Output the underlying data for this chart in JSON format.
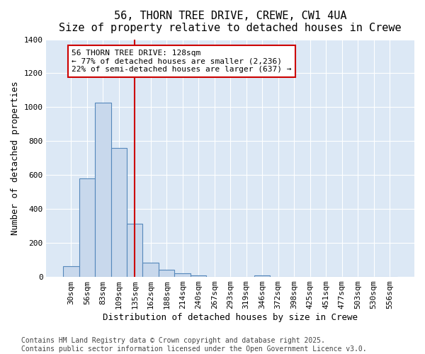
{
  "title": "56, THORN TREE DRIVE, CREWE, CW1 4UA",
  "subtitle": "Size of property relative to detached houses in Crewe",
  "xlabel": "Distribution of detached houses by size in Crewe",
  "ylabel": "Number of detached properties",
  "categories": [
    "30sqm",
    "56sqm",
    "83sqm",
    "109sqm",
    "135sqm",
    "162sqm",
    "188sqm",
    "214sqm",
    "240sqm",
    "267sqm",
    "293sqm",
    "319sqm",
    "346sqm",
    "372sqm",
    "398sqm",
    "425sqm",
    "451sqm",
    "477sqm",
    "503sqm",
    "530sqm",
    "556sqm"
  ],
  "values": [
    65,
    580,
    1025,
    760,
    315,
    85,
    40,
    20,
    10,
    0,
    0,
    0,
    10,
    0,
    0,
    0,
    0,
    0,
    0,
    0,
    0
  ],
  "bar_color": "#c8d8ec",
  "bar_edge_color": "#5588bb",
  "ylim": [
    0,
    1400
  ],
  "yticks": [
    0,
    200,
    400,
    600,
    800,
    1000,
    1200,
    1400
  ],
  "vline_pos": 4.0,
  "vline_color": "#cc0000",
  "annotation_text": "56 THORN TREE DRIVE: 128sqm\n← 77% of detached houses are smaller (2,236)\n22% of semi-detached houses are larger (637) →",
  "annotation_box_color": "#ffffff",
  "annotation_box_edge_color": "#cc0000",
  "plot_bg_color": "#dce8f5",
  "fig_bg_color": "#ffffff",
  "grid_color": "#ffffff",
  "footer_line1": "Contains HM Land Registry data © Crown copyright and database right 2025.",
  "footer_line2": "Contains public sector information licensed under the Open Government Licence v3.0.",
  "title_fontsize": 11,
  "subtitle_fontsize": 10,
  "axis_label_fontsize": 9,
  "tick_fontsize": 8,
  "annotation_fontsize": 8,
  "footer_fontsize": 7
}
